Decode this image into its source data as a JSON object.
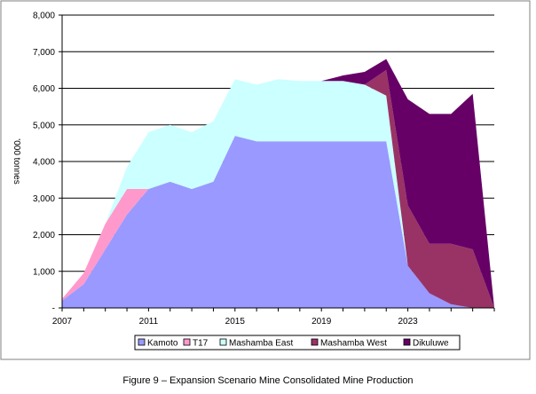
{
  "chart_data": {
    "type": "area",
    "stacked": true,
    "ylabel": "'000 tonnes",
    "xlabel": "",
    "ylim": [
      0,
      8000
    ],
    "yticks": [
      0,
      1000,
      2000,
      3000,
      4000,
      5000,
      6000,
      7000,
      8000
    ],
    "ytick_labels": [
      "-",
      "1,000",
      "2,000",
      "3,000",
      "4,000",
      "5,000",
      "6,000",
      "7,000",
      "8,000"
    ],
    "x": [
      2007,
      2008,
      2009,
      2010,
      2011,
      2012,
      2013,
      2014,
      2015,
      2016,
      2017,
      2018,
      2019,
      2020,
      2021,
      2022,
      2023,
      2024,
      2025,
      2026,
      2027
    ],
    "xtick_labels": [
      "2007",
      "2011",
      "2015",
      "2019",
      "2023"
    ],
    "xtick_values": [
      2007,
      2011,
      2015,
      2019,
      2023
    ],
    "series": [
      {
        "name": "Kamoto",
        "color": "#9999ff",
        "values": [
          200,
          650,
          1600,
          2550,
          3250,
          3450,
          3250,
          3450,
          4700,
          4550,
          4550,
          4550,
          4550,
          4550,
          4550,
          4550,
          1150,
          400,
          100,
          0,
          0
        ]
      },
      {
        "name": "T17",
        "color": "#ff99cc",
        "values": [
          50,
          300,
          700,
          700,
          0,
          0,
          0,
          0,
          0,
          0,
          0,
          0,
          0,
          0,
          0,
          0,
          0,
          0,
          0,
          0,
          0
        ]
      },
      {
        "name": "Mashamba East",
        "color": "#ccffff",
        "values": [
          0,
          0,
          0,
          600,
          1550,
          1550,
          1550,
          1650,
          1550,
          1550,
          1700,
          1650,
          1650,
          1650,
          1550,
          1250,
          0,
          0,
          0,
          0,
          0
        ]
      },
      {
        "name": "Mashamba West",
        "color": "#993366",
        "values": [
          0,
          0,
          0,
          0,
          0,
          0,
          0,
          0,
          0,
          0,
          0,
          0,
          0,
          0,
          0,
          700,
          1650,
          1350,
          1650,
          1600,
          0
        ]
      },
      {
        "name": "Dikuluwe",
        "color": "#660066",
        "values": [
          0,
          0,
          0,
          0,
          0,
          0,
          0,
          0,
          0,
          0,
          0,
          0,
          0,
          150,
          350,
          300,
          2900,
          3550,
          3550,
          4250,
          0
        ]
      }
    ],
    "legend_position": "bottom",
    "grid": "horizontal"
  },
  "caption": "Figure 9 – Expansion Scenario Mine Consolidated Mine Production",
  "colors": {
    "plot_background": "#ffffff",
    "gridline": "#000000",
    "frame": "#808080"
  }
}
